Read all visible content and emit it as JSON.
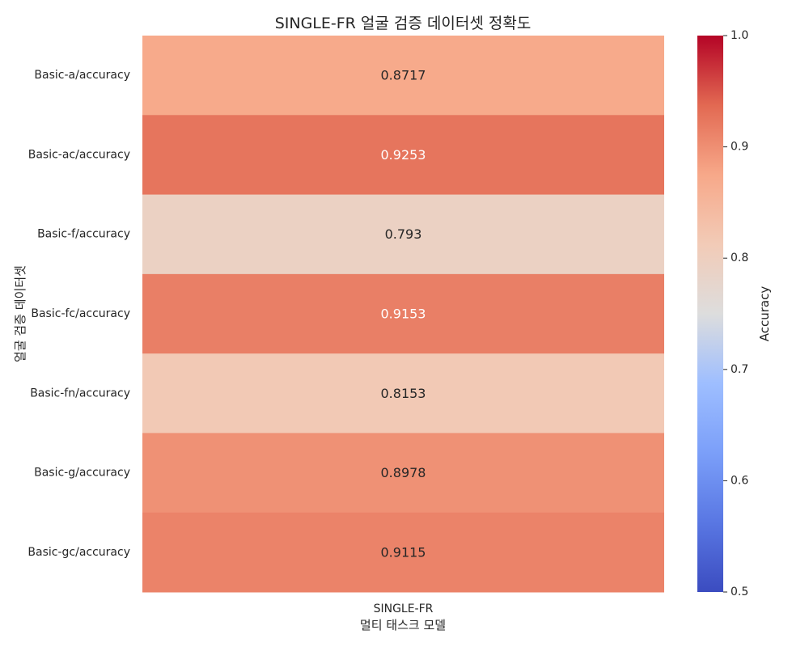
{
  "chart_data": {
    "type": "heatmap",
    "title": "SINGLE-FR 얼굴 검증 데이터셋 정확도",
    "xlabel": "멀티 태스크 모델",
    "ylabel": "얼굴 검증 데이터셋",
    "x_categories": [
      "SINGLE-FR"
    ],
    "y_categories": [
      "Basic-a/accuracy",
      "Basic-ac/accuracy",
      "Basic-f/accuracy",
      "Basic-fc/accuracy",
      "Basic-fn/accuracy",
      "Basic-g/accuracy",
      "Basic-gc/accuracy"
    ],
    "values": [
      [
        0.8717
      ],
      [
        0.9253
      ],
      [
        0.793
      ],
      [
        0.9153
      ],
      [
        0.8153
      ],
      [
        0.8978
      ],
      [
        0.9115
      ]
    ],
    "annotations": [
      "0.8717",
      "0.9253",
      "0.793",
      "0.9153",
      "0.8153",
      "0.8978",
      "0.9115"
    ],
    "colorbar": {
      "label": "Accuracy",
      "range": [
        0.5,
        1.0
      ],
      "ticks": [
        "0.5",
        "0.6",
        "0.7",
        "0.8",
        "0.9",
        "1.0"
      ],
      "colormap": "coolwarm"
    }
  }
}
